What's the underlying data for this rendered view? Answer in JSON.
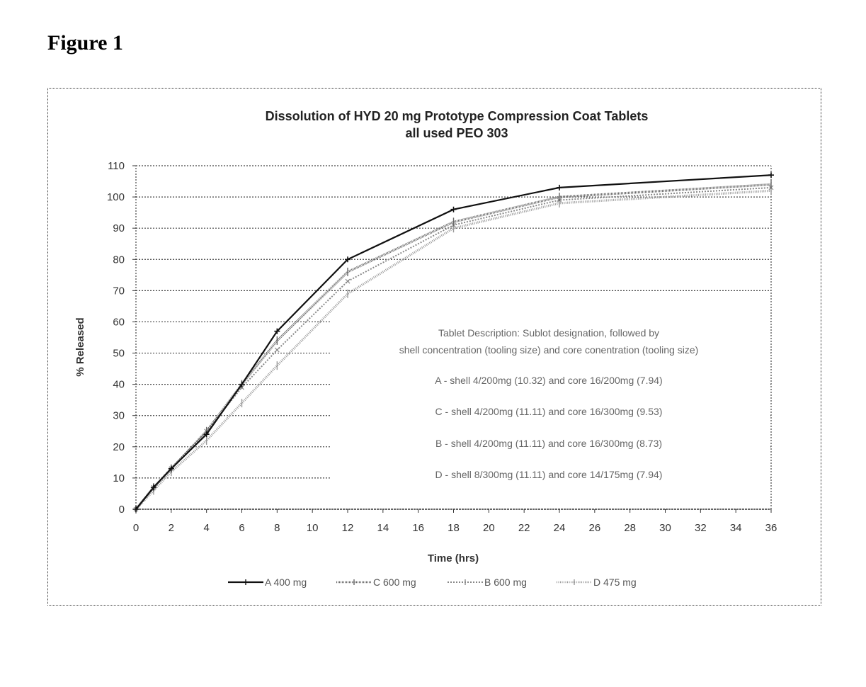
{
  "figure": {
    "label": "Figure 1"
  },
  "chart_data": {
    "type": "line",
    "title": "Dissolution of HYD 20 mg Prototype Compression Coat Tablets",
    "subtitle": "all used PEO 303",
    "xlabel": "Time (hrs)",
    "ylabel": "% Released",
    "xlim": [
      0,
      36
    ],
    "ylim": [
      0,
      110
    ],
    "xticks": [
      0,
      2,
      4,
      6,
      8,
      10,
      12,
      14,
      16,
      18,
      20,
      22,
      24,
      26,
      28,
      30,
      32,
      34,
      36
    ],
    "yticks": [
      0,
      10,
      20,
      30,
      40,
      50,
      60,
      70,
      80,
      90,
      100,
      110
    ],
    "grid": "horizontal dotted",
    "legend_position": "bottom",
    "x": [
      0,
      1,
      2,
      4,
      6,
      8,
      12,
      18,
      24,
      36
    ],
    "series": [
      {
        "name": "A 400 mg",
        "values": [
          0,
          7,
          13,
          24,
          40,
          57,
          80,
          96,
          103,
          107
        ],
        "style": "solid dark, plus markers"
      },
      {
        "name": "C 600 mg",
        "values": [
          0,
          7,
          13,
          25,
          40,
          54,
          76,
          92,
          100,
          104
        ],
        "style": "hatched gray"
      },
      {
        "name": "B 600 mg",
        "values": [
          0,
          7,
          13,
          25,
          39,
          51,
          73,
          91,
          99,
          103
        ],
        "style": "dotted gray, x markers"
      },
      {
        "name": "D 475 mg",
        "values": [
          0,
          6,
          12,
          22,
          34,
          46,
          69,
          90,
          98,
          102
        ],
        "style": "hatched light gray"
      }
    ],
    "annotation": {
      "heading_line1": "Tablet Description: Sublot designation, followed by",
      "heading_line2": "shell concentration (tooling size) and core conentration (tooling size)",
      "lines": [
        "A  - shell 4/200mg (10.32) and core 16/200mg (7.94)",
        "C - shell 4/200mg (11.11) and core 16/300mg (9.53)",
        "B - shell 4/200mg (11.11) and core 16/300mg (8.73)",
        "D - shell 8/300mg (11.11) and core 14/175mg (7.94)"
      ]
    }
  }
}
